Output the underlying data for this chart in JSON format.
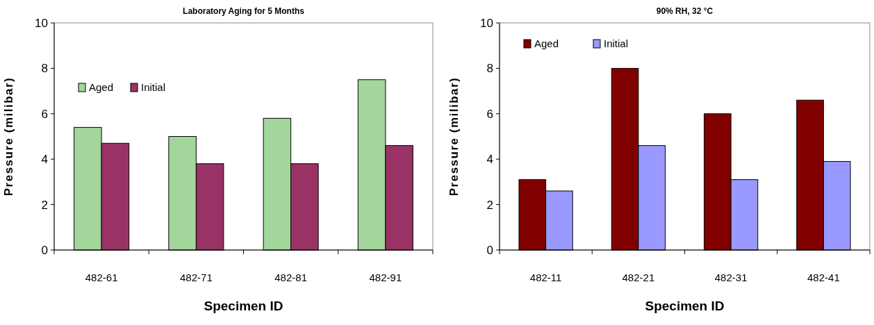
{
  "chart_data": [
    {
      "type": "bar",
      "title": "Laboratory Aging for 5 Months",
      "xlabel": "Specimen ID",
      "ylabel": "Pressure (milibar)",
      "categories": [
        "482-61",
        "482-71",
        "482-81",
        "482-91"
      ],
      "series": [
        {
          "name": "Aged",
          "color": "#a3d69c",
          "values": [
            5.4,
            5.0,
            5.8,
            7.5
          ]
        },
        {
          "name": "Initial",
          "color": "#993366",
          "values": [
            4.7,
            3.8,
            3.8,
            4.6
          ]
        }
      ],
      "ylim": [
        0,
        10
      ],
      "yticks": [
        0,
        2,
        4,
        6,
        8,
        10
      ],
      "legend": "top left"
    },
    {
      "type": "bar",
      "title": "90% RH, 32 °C",
      "xlabel": "Specimen ID",
      "ylabel": "Pressure (milibar)",
      "categories": [
        "482-11",
        "482-21",
        "482-31",
        "482-41"
      ],
      "series": [
        {
          "name": "Aged",
          "color": "#800000",
          "values": [
            3.1,
            8.0,
            6.0,
            6.6
          ]
        },
        {
          "name": "Initial",
          "color": "#9999ff",
          "values": [
            2.6,
            4.6,
            3.1,
            3.9
          ]
        }
      ],
      "ylim": [
        0,
        10
      ],
      "yticks": [
        0,
        2,
        4,
        6,
        8,
        10
      ],
      "legend": "top left"
    }
  ]
}
